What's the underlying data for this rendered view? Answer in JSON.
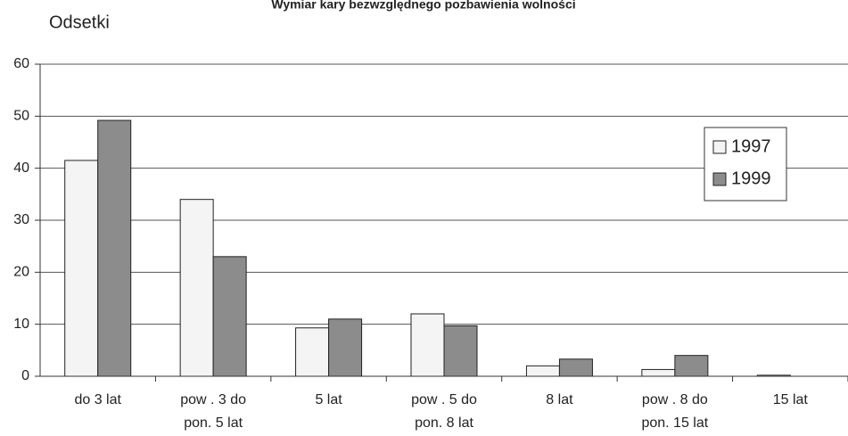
{
  "chart_data": {
    "type": "bar",
    "title": "Wymiar kary bezwzględnego pozbawienia wolności",
    "y_label": "Odsetki",
    "categories": [
      "do 3 lat",
      "pow . 3 do\npon. 5 lat",
      "5 lat",
      "pow . 5 do\npon. 8 lat",
      "8 lat",
      "pow . 8 do\npon. 15 lat",
      "15 lat"
    ],
    "series": [
      {
        "name": "1997",
        "color": "#f4f4f4",
        "values": [
          41.5,
          34,
          9.3,
          12,
          2,
          1.3,
          0.2
        ]
      },
      {
        "name": "1999",
        "color": "#8c8c8c",
        "values": [
          49.2,
          23,
          11,
          9.7,
          3.3,
          4,
          0
        ]
      }
    ],
    "ylim": [
      0,
      60
    ],
    "yticks": [
      0,
      10,
      20,
      30,
      40,
      50,
      60
    ],
    "grid": true,
    "legend": "upper right"
  }
}
